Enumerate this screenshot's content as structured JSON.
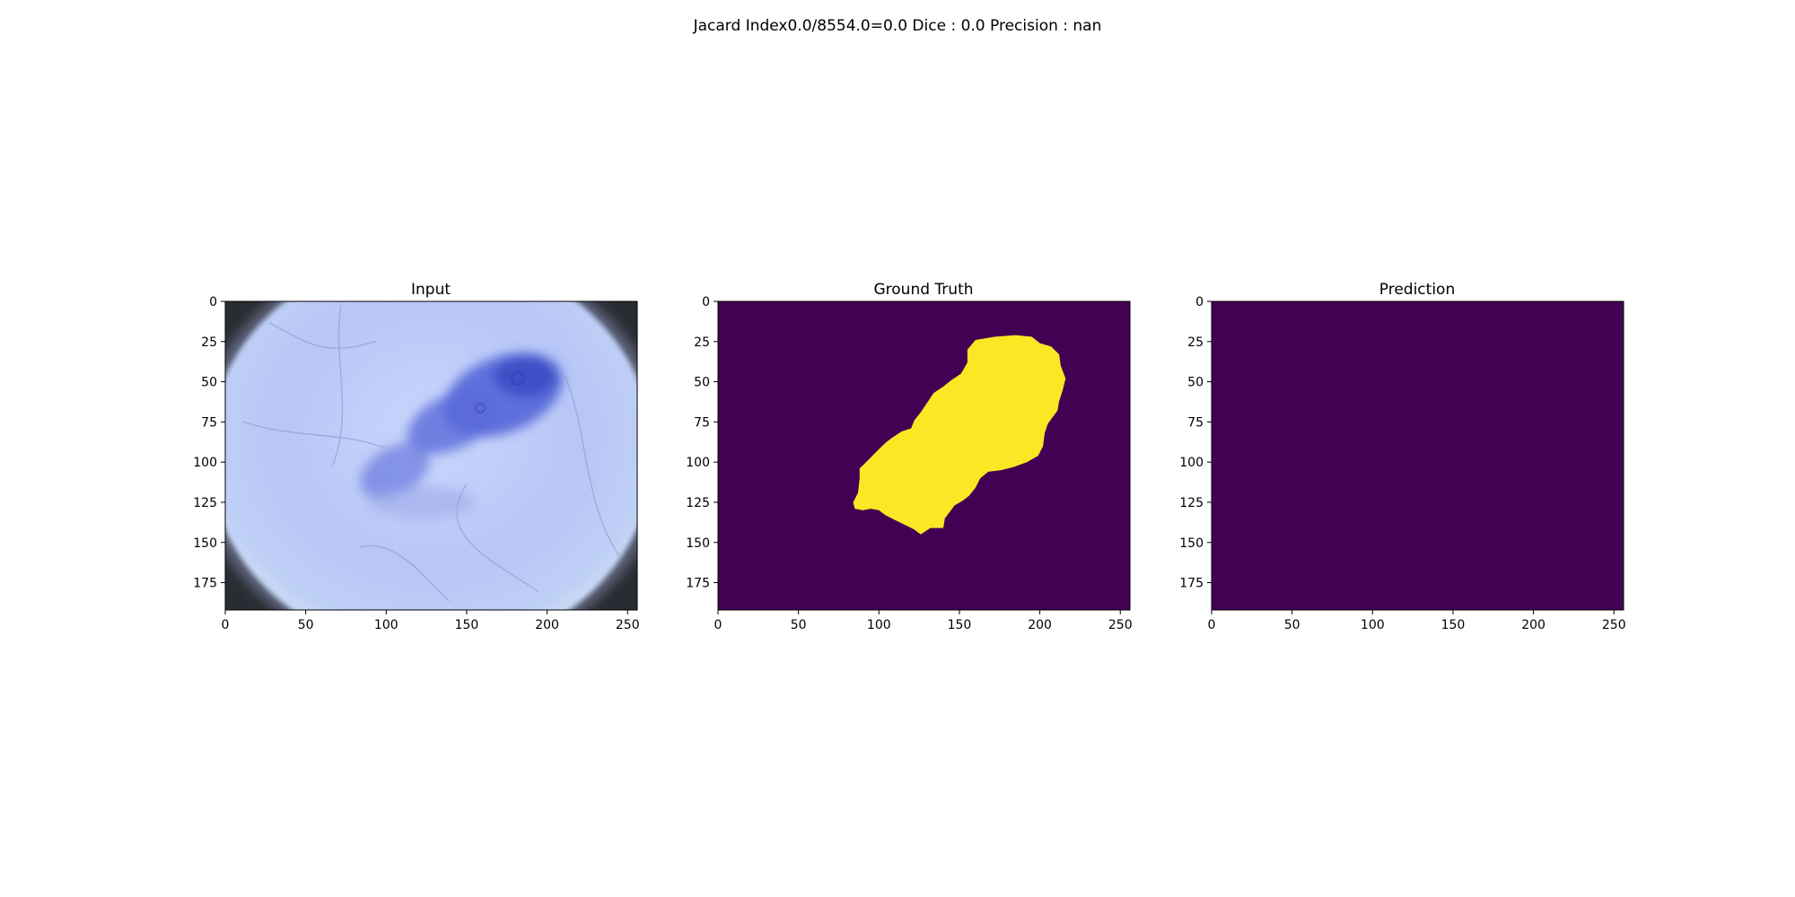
{
  "figure": {
    "suptitle": "Jacard Index0.0/8554.0=0.0 Dice : 0.0 Precision : nan"
  },
  "chart_data": [
    {
      "type": "heatmap",
      "title": "Input",
      "content": "rgb image",
      "xlim": [
        0,
        256
      ],
      "ylim": [
        192,
        0
      ],
      "xticks": [
        0,
        50,
        100,
        150,
        200,
        250
      ],
      "yticks": [
        0,
        25,
        50,
        75,
        100,
        125,
        150,
        175
      ]
    },
    {
      "type": "heatmap",
      "title": "Ground Truth",
      "content": "binary mask",
      "xlim": [
        0,
        256
      ],
      "ylim": [
        192,
        0
      ],
      "xticks": [
        0,
        50,
        100,
        150,
        200,
        250
      ],
      "yticks": [
        0,
        25,
        50,
        75,
        100,
        125,
        150,
        175
      ],
      "colors": {
        "background": "#440154",
        "foreground": "#fde725"
      },
      "mask_polygon": [
        [
          155,
          30
        ],
        [
          160,
          24
        ],
        [
          172,
          22
        ],
        [
          185,
          21
        ],
        [
          195,
          22
        ],
        [
          200,
          26
        ],
        [
          207,
          28
        ],
        [
          212,
          33
        ],
        [
          213,
          40
        ],
        [
          216,
          48
        ],
        [
          214,
          56
        ],
        [
          212,
          62
        ],
        [
          211,
          68
        ],
        [
          208,
          72
        ],
        [
          205,
          76
        ],
        [
          203,
          82
        ],
        [
          202,
          90
        ],
        [
          199,
          96
        ],
        [
          192,
          100
        ],
        [
          184,
          103
        ],
        [
          176,
          105
        ],
        [
          168,
          106
        ],
        [
          163,
          110
        ],
        [
          160,
          116
        ],
        [
          156,
          121
        ],
        [
          152,
          124
        ],
        [
          147,
          127
        ],
        [
          141,
          135
        ],
        [
          140,
          141
        ],
        [
          132,
          141
        ],
        [
          126,
          145
        ],
        [
          122,
          142
        ],
        [
          118,
          140
        ],
        [
          110,
          136
        ],
        [
          104,
          133
        ],
        [
          100,
          130
        ],
        [
          95,
          129
        ],
        [
          90,
          130
        ],
        [
          85,
          129
        ],
        [
          84,
          125
        ],
        [
          87,
          119
        ],
        [
          88,
          110
        ],
        [
          88,
          104
        ],
        [
          92,
          100
        ],
        [
          96,
          96
        ],
        [
          100,
          92
        ],
        [
          104,
          88
        ],
        [
          108,
          85
        ],
        [
          114,
          81
        ],
        [
          120,
          79
        ],
        [
          122,
          74
        ],
        [
          126,
          69
        ],
        [
          130,
          63
        ],
        [
          134,
          57
        ],
        [
          140,
          53
        ],
        [
          145,
          49
        ],
        [
          151,
          45
        ],
        [
          155,
          38
        ]
      ]
    },
    {
      "type": "heatmap",
      "title": "Prediction",
      "content": "binary mask (all zeros)",
      "xlim": [
        0,
        256
      ],
      "ylim": [
        192,
        0
      ],
      "xticks": [
        0,
        50,
        100,
        150,
        200,
        250
      ],
      "yticks": [
        0,
        25,
        50,
        75,
        100,
        125,
        150,
        175
      ],
      "colors": {
        "background": "#440154"
      }
    }
  ]
}
